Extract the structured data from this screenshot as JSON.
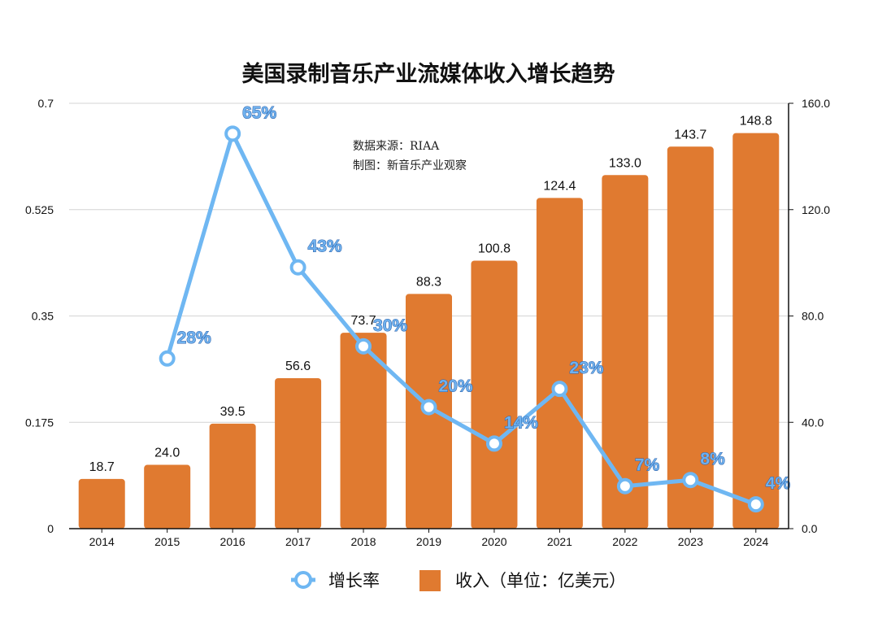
{
  "colors": {
    "bar": "#e07a30",
    "line": "#6fb7f2",
    "grid": "#d4d4d4",
    "axis": "#111111"
  },
  "chart_data": {
    "type": "bar+line",
    "title": "美国录制音乐产业流媒体收入增长趋势",
    "notes": [
      "数据来源：RIAA",
      "制图：新音乐产业观察"
    ],
    "categories": [
      "2014",
      "2015",
      "2016",
      "2017",
      "2018",
      "2019",
      "2020",
      "2021",
      "2022",
      "2023",
      "2024"
    ],
    "series": [
      {
        "name": "收入（单位：亿美元）",
        "type": "bar",
        "axis": "right",
        "values": [
          18.7,
          24.0,
          39.5,
          56.6,
          73.7,
          88.3,
          100.8,
          124.4,
          133.0,
          143.7,
          148.8
        ],
        "labels": [
          "18.7",
          "24.0",
          "39.5",
          "56.6",
          "73.7",
          "88.3",
          "100.8",
          "124.4",
          "133.0",
          "143.7",
          "148.8"
        ]
      },
      {
        "name": "增长率",
        "type": "line",
        "axis": "left",
        "values": [
          null,
          0.28,
          0.65,
          0.43,
          0.3,
          0.2,
          0.14,
          0.23,
          0.07,
          0.08,
          0.04
        ],
        "labels": [
          "",
          "28%",
          "65%",
          "43%",
          "30%",
          "20%",
          "14%",
          "23%",
          "7%",
          "8%",
          "4%"
        ]
      }
    ],
    "left_axis": {
      "ylim": [
        0,
        0.7
      ],
      "ticks": [
        0,
        0.175,
        0.35,
        0.525,
        0.7
      ],
      "tick_labels": [
        "0",
        "0.175",
        "0.35",
        "0.525",
        "0.7"
      ]
    },
    "right_axis": {
      "ylim": [
        0,
        160
      ],
      "ticks": [
        0,
        40,
        80,
        120,
        160
      ],
      "tick_labels": [
        "0.0",
        "40.0",
        "80.0",
        "120.0",
        "160.0"
      ]
    },
    "grid": true,
    "legend": {
      "position": "bottom-center",
      "items": [
        "增长率",
        "收入（单位：亿美元）"
      ]
    }
  }
}
